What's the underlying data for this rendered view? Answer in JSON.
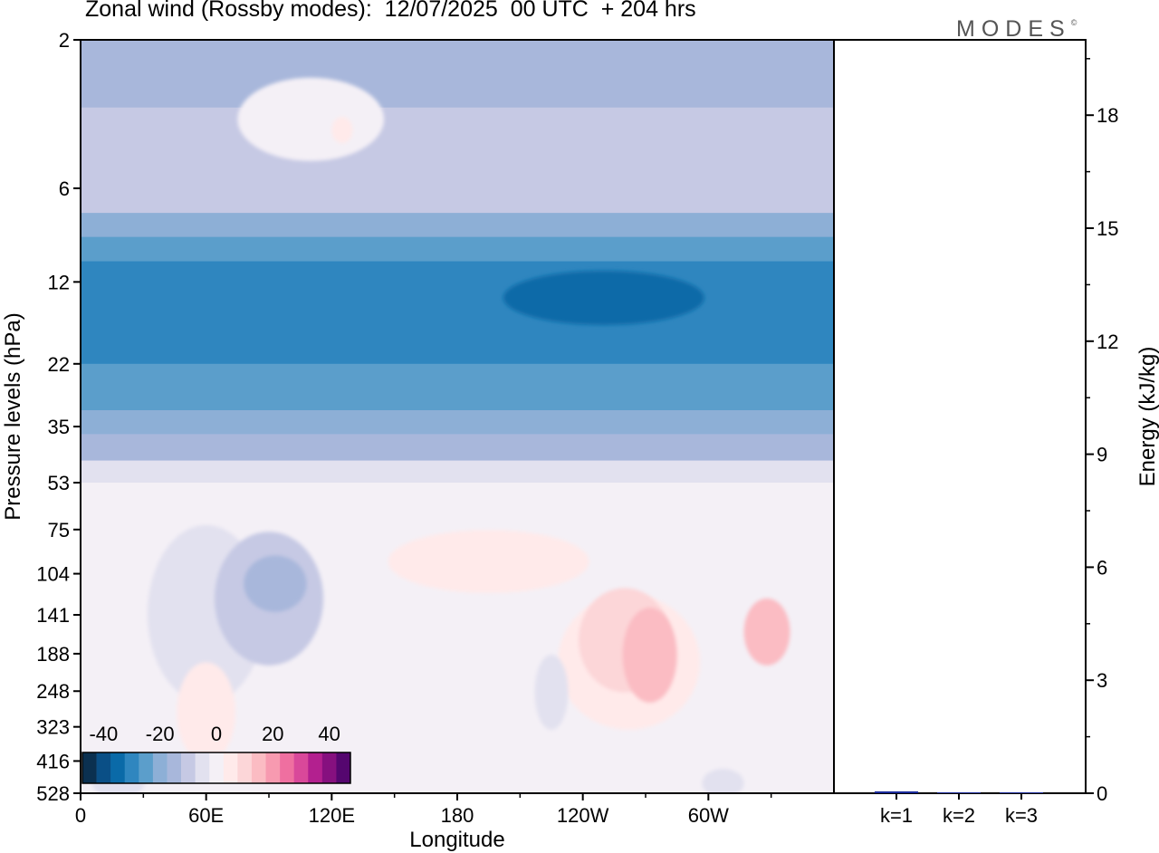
{
  "header": {
    "title": "Zonal wind (Rossby modes):  12/07/2025  00 UTC  + 204 hrs",
    "brand": "MODES",
    "brand_mark": "©"
  },
  "chart_data": [
    {
      "type": "heatmap",
      "title": "Zonal wind (Rossby modes):  12/07/2025  00 UTC  + 204 hrs",
      "xlabel": "Longitude",
      "ylabel": "Pressure levels (hPa)",
      "x_ticks": [
        "0",
        "60E",
        "120E",
        "180",
        "120W",
        "60W"
      ],
      "y_ticks": [
        "2",
        "6",
        "12",
        "22",
        "35",
        "53",
        "75",
        "104",
        "141",
        "188",
        "248",
        "323",
        "416",
        "528"
      ],
      "colorbar": {
        "tick_labels": [
          "-40",
          "-20",
          "0",
          "20",
          "40"
        ],
        "levels": [
          -45,
          -40,
          -35,
          -30,
          -25,
          -20,
          -15,
          -10,
          -5,
          0,
          5,
          10,
          15,
          20,
          25,
          30,
          35,
          40,
          45
        ],
        "colors": [
          "#0b3050",
          "#0a4f86",
          "#0a6aa8",
          "#2f86bf",
          "#5b9ecb",
          "#8dafd6",
          "#a8b7db",
          "#c6c9e4",
          "#e2e1ef",
          "#f4f0f6",
          "#ffeaea",
          "#fcd6d8",
          "#fbbcc3",
          "#f79ab0",
          "#ef6fa0",
          "#d9489a",
          "#b3208f",
          "#86107f",
          "#55066f"
        ]
      },
      "bands": [
        {
          "p_top": 2,
          "p_bottom": 3.3,
          "value": -15
        },
        {
          "p_top": 3.3,
          "p_bottom": 7.2,
          "value": -10
        },
        {
          "p_top": 7.2,
          "p_bottom": 8.6,
          "value": -20
        },
        {
          "p_top": 8.6,
          "p_bottom": 10.3,
          "value": -25
        },
        {
          "p_top": 10.3,
          "p_bottom": 22,
          "value": -30
        },
        {
          "p_top": 22,
          "p_bottom": 31,
          "value": -25
        },
        {
          "p_top": 31,
          "p_bottom": 37,
          "value": -20
        },
        {
          "p_top": 37,
          "p_bottom": 45,
          "value": -15
        },
        {
          "p_top": 45,
          "p_bottom": 53,
          "value": -5
        },
        {
          "p_top": 53,
          "p_bottom": 528,
          "value": 0
        }
      ],
      "blobs": [
        {
          "lon": 110,
          "p": 3.6,
          "dlon": 35,
          "dp": 1.3,
          "value": 0
        },
        {
          "lon": 125,
          "p": 3.9,
          "dlon": 5,
          "dp": 0.4,
          "value": 5
        },
        {
          "lon": 250,
          "p": 13.5,
          "dlon": 48,
          "dp": 3,
          "value": -35
        },
        {
          "lon": 60,
          "p": 140,
          "dlon": 28,
          "dp": 130,
          "value": -5
        },
        {
          "lon": 90,
          "p": 125,
          "dlon": 26,
          "dp": 80,
          "value": -10
        },
        {
          "lon": 93,
          "p": 112,
          "dlon": 15,
          "dp": 26,
          "value": -15
        },
        {
          "lon": 195,
          "p": 95,
          "dlon": 48,
          "dp": 25,
          "value": 5
        },
        {
          "lon": 262,
          "p": 200,
          "dlon": 34,
          "dp": 130,
          "value": 5
        },
        {
          "lon": 260,
          "p": 170,
          "dlon": 22,
          "dp": 80,
          "value": 10
        },
        {
          "lon": 272,
          "p": 190,
          "dlon": 13,
          "dp": 80,
          "value": 15
        },
        {
          "lon": 328,
          "p": 160,
          "dlon": 11,
          "dp": 45,
          "value": 15
        },
        {
          "lon": 225,
          "p": 250,
          "dlon": 8,
          "dp": 80,
          "value": -5
        },
        {
          "lon": 60,
          "p": 290,
          "dlon": 14,
          "dp": 130,
          "value": 5
        },
        {
          "lon": 18,
          "p": 475,
          "dlon": 13,
          "dp": 80,
          "value": -5
        },
        {
          "lon": 307,
          "p": 490,
          "dlon": 10,
          "dp": 55,
          "value": -5
        }
      ]
    },
    {
      "type": "bar",
      "categories": [
        "k=1",
        "k=2",
        "k=3"
      ],
      "values": [
        0.05,
        0.02,
        0.01
      ],
      "ylabel": "Energy (kJ/kg)",
      "y_ticks": [
        "0",
        "3",
        "6",
        "9",
        "12",
        "15",
        "18"
      ],
      "ylim": [
        0,
        20
      ],
      "bar_colors": [
        "#1a2a9a",
        "#1a2a9a",
        "#1a2a9a"
      ]
    }
  ]
}
